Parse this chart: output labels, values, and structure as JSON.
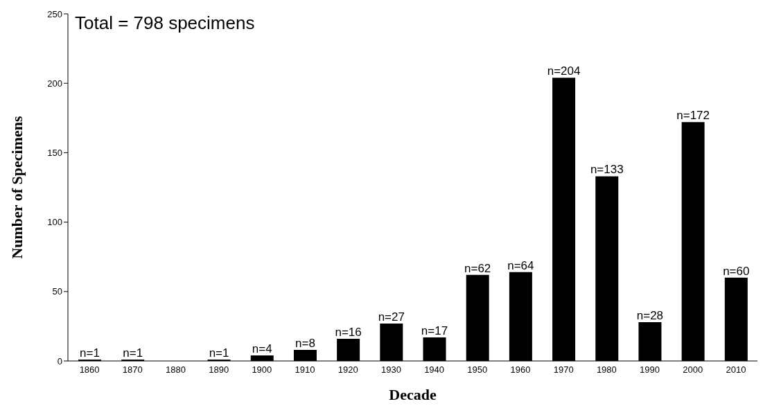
{
  "chart_data": {
    "type": "bar",
    "xlabel": "Decade",
    "ylabel": "Number of Specimens",
    "categories": [
      "1860",
      "1870",
      "1880",
      "1890",
      "1900",
      "1910",
      "1920",
      "1930",
      "1940",
      "1950",
      "1960",
      "1970",
      "1980",
      "1990",
      "2000",
      "2010"
    ],
    "values": [
      1,
      1,
      0,
      1,
      4,
      8,
      16,
      27,
      17,
      62,
      64,
      204,
      133,
      28,
      172,
      60
    ],
    "value_labels": [
      "n=1",
      "n=1",
      null,
      "n=1",
      "n=4",
      "n=8",
      "n=16",
      "n=27",
      "n=17",
      "n=62",
      "n=64",
      "n=204",
      "n=133",
      "n=28",
      "n=172",
      "n=60"
    ],
    "color": "#000000",
    "ylim": [
      0,
      250
    ],
    "yticks": [
      0,
      50,
      100,
      150,
      200,
      250
    ],
    "grid": false,
    "annotations": [
      "Total = 798 specimens"
    ]
  }
}
